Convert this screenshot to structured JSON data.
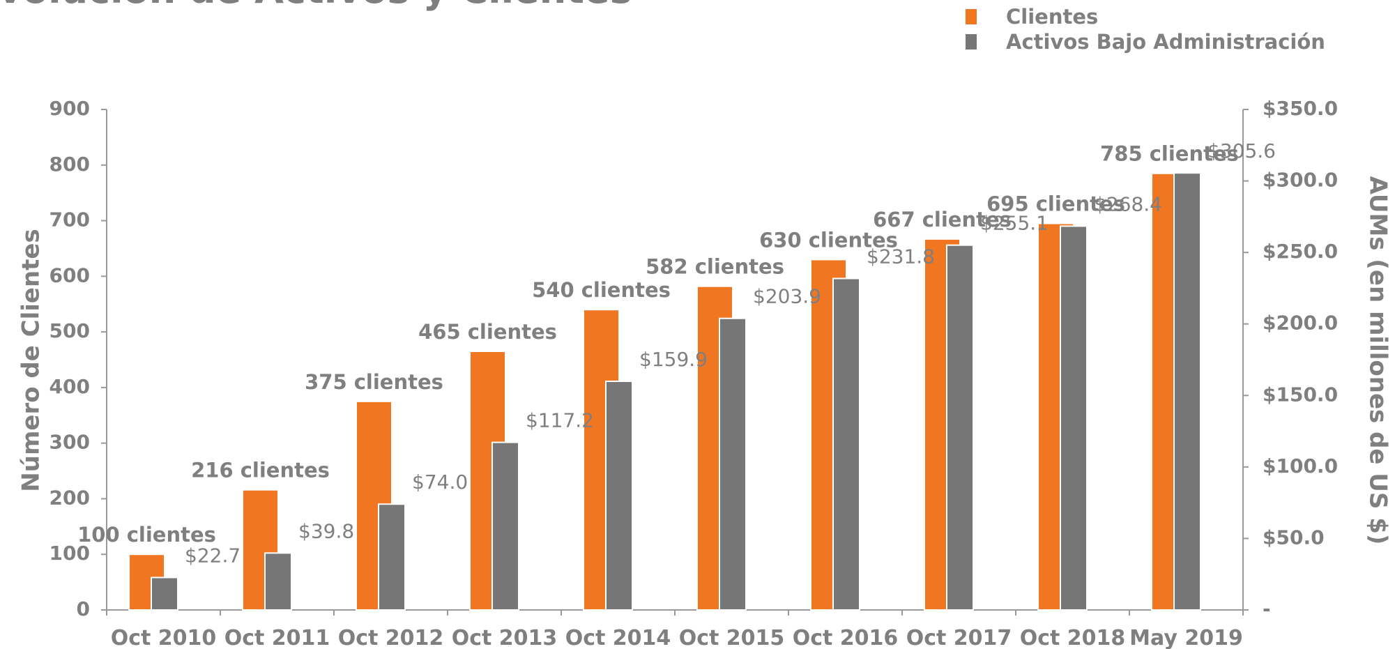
{
  "chart_data": {
    "type": "bar",
    "title": "Evolución de Activos y Clientes",
    "categories": [
      "Oct 2010",
      "Oct 2011",
      "Oct 2012",
      "Oct 2013",
      "Oct 2014",
      "Oct 2015",
      "Oct 2016",
      "Oct 2017",
      "Oct 2018",
      "May 2019"
    ],
    "series": [
      {
        "name": "Clientes",
        "color": "#f07622",
        "values": [
          100,
          216,
          375,
          465,
          540,
          582,
          630,
          667,
          695,
          785
        ],
        "value_labels": [
          "100 clientes",
          "216 clientes",
          "375 clientes",
          "465 clientes",
          "540 clientes",
          "582 clientes",
          "630 clientes",
          "667 clientes",
          "695 clientes",
          "785 clientes"
        ]
      },
      {
        "name": "Activos Bajo Administración",
        "color": "#767676",
        "axis": "y2",
        "values": [
          22.7,
          39.8,
          74.0,
          117.2,
          159.9,
          203.9,
          231.8,
          255.1,
          268.4,
          305.6
        ],
        "value_labels": [
          "$22.7",
          "$39.8",
          "$74.0",
          "$117.2",
          "$159.9",
          "$203.9",
          "$231.8",
          "$255.1",
          "$268.4",
          "$305.6"
        ]
      }
    ],
    "ylabel": "Número de Clientes",
    "y2label": "AUMs (en millones de US $)",
    "ylim": [
      0,
      900
    ],
    "yticks": [
      0,
      100,
      200,
      300,
      400,
      500,
      600,
      700,
      800,
      900
    ],
    "y2lim": [
      0,
      350
    ],
    "y2ticks": [
      {
        "value": 0,
        "label": "-"
      },
      {
        "value": 50,
        "label": "$50.0"
      },
      {
        "value": 100,
        "label": "$100.0"
      },
      {
        "value": 150,
        "label": "$150.0"
      },
      {
        "value": 200,
        "label": "$200.0"
      },
      {
        "value": 250,
        "label": "$250.0"
      },
      {
        "value": 300,
        "label": "$300.0"
      },
      {
        "value": 350,
        "label": "$350.0"
      }
    ],
    "legend": "top-right",
    "grid": false
  }
}
